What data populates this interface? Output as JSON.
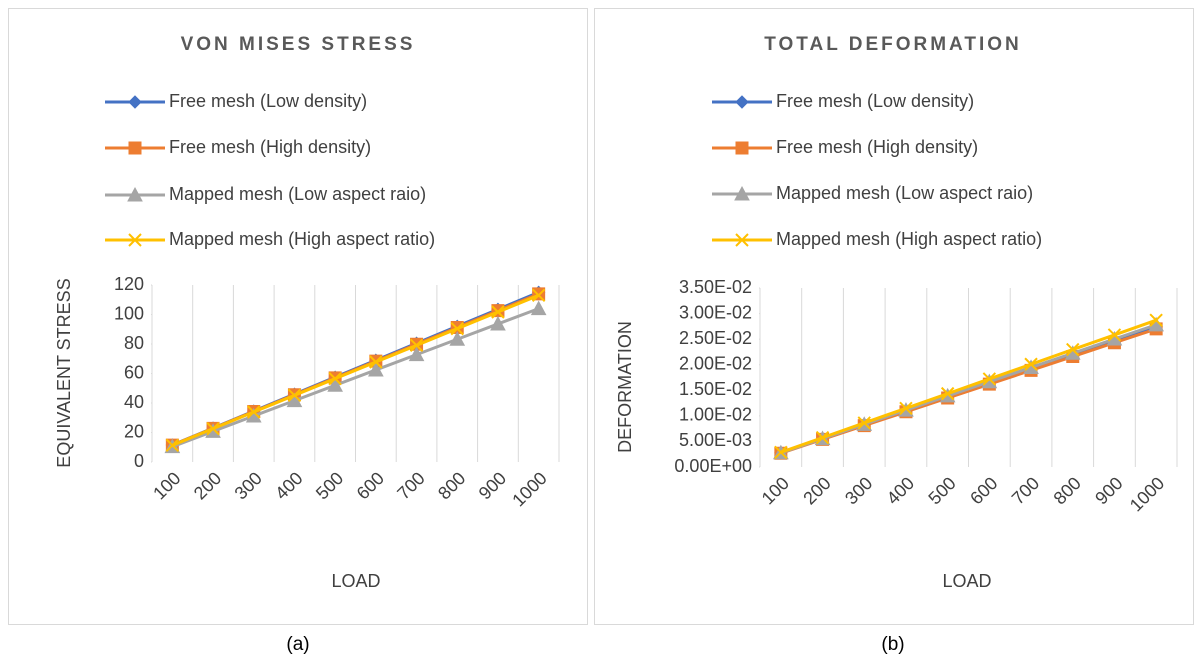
{
  "chart_data": [
    {
      "type": "line",
      "title": "VON MISES STRESS",
      "xlabel": "LOAD",
      "ylabel": "EQUIVALENT STRESS",
      "caption": "(a)",
      "categories": [
        "100",
        "200",
        "300",
        "400",
        "500",
        "600",
        "700",
        "800",
        "900",
        "1000"
      ],
      "ylim": [
        0,
        120
      ],
      "yticks": [
        0,
        20,
        40,
        60,
        80,
        100,
        120
      ],
      "grid": "x",
      "legend": "top",
      "series": [
        {
          "name": "Free mesh (Low density)",
          "color": "#4472c4",
          "marker": "diamond",
          "values": [
            11.5,
            23,
            34.5,
            46,
            57.5,
            69,
            80.5,
            92,
            103.5,
            115
          ]
        },
        {
          "name": "Free mesh (High density)",
          "color": "#ed7d31",
          "marker": "square",
          "values": [
            11.4,
            22.8,
            34.2,
            45.6,
            57,
            68.4,
            79.8,
            91.2,
            102.6,
            114
          ]
        },
        {
          "name": "Mapped mesh (Low aspect raio)",
          "color": "#a5a5a5",
          "marker": "triangle",
          "values": [
            10.4,
            20.8,
            31.2,
            41.6,
            52,
            62.4,
            72.8,
            83.2,
            93.6,
            104
          ]
        },
        {
          "name": "Mapped mesh (High aspect ratio)",
          "color": "#ffc000",
          "marker": "x",
          "values": [
            11.3,
            22.6,
            33.9,
            45.2,
            56.5,
            67.8,
            79.1,
            90.4,
            101.7,
            113
          ]
        }
      ]
    },
    {
      "type": "line",
      "title": "TOTAL DEFORMATION",
      "xlabel": "LOAD",
      "ylabel": "DEFORMATION",
      "caption": "(b)",
      "categories": [
        "100",
        "200",
        "300",
        "400",
        "500",
        "600",
        "700",
        "800",
        "900",
        "1000"
      ],
      "ylim": [
        0,
        0.035
      ],
      "yticks": [
        {
          "value": 0,
          "label": "0.00E+00"
        },
        {
          "value": 0.005,
          "label": "5.00E-03"
        },
        {
          "value": 0.01,
          "label": "1.00E-02"
        },
        {
          "value": 0.015,
          "label": "1.50E-02"
        },
        {
          "value": 0.02,
          "label": "2.00E-02"
        },
        {
          "value": 0.025,
          "label": "2.50E-02"
        },
        {
          "value": 0.03,
          "label": "3.00E-02"
        },
        {
          "value": 0.035,
          "label": "3.50E-02"
        }
      ],
      "grid": "x",
      "legend": "top",
      "series": [
        {
          "name": "Free mesh (Low density)",
          "color": "#4472c4",
          "marker": "diamond",
          "values": [
            0.00275,
            0.0055,
            0.00825,
            0.011,
            0.01375,
            0.0165,
            0.01925,
            0.022,
            0.02475,
            0.0275
          ]
        },
        {
          "name": "Free mesh (High density)",
          "color": "#ed7d31",
          "marker": "square",
          "values": [
            0.0027,
            0.0054,
            0.0081,
            0.0108,
            0.0135,
            0.0162,
            0.0189,
            0.0216,
            0.0243,
            0.027
          ]
        },
        {
          "name": "Mapped mesh (Low aspect raio)",
          "color": "#a5a5a5",
          "marker": "triangle",
          "values": [
            0.00278,
            0.00556,
            0.00834,
            0.01112,
            0.0139,
            0.01668,
            0.01946,
            0.02224,
            0.02502,
            0.0278
          ]
        },
        {
          "name": "Mapped mesh (High aspect ratio)",
          "color": "#ffc000",
          "marker": "x",
          "values": [
            0.00287,
            0.00574,
            0.00861,
            0.01148,
            0.01435,
            0.01722,
            0.02009,
            0.02296,
            0.02583,
            0.0287
          ]
        }
      ]
    }
  ]
}
